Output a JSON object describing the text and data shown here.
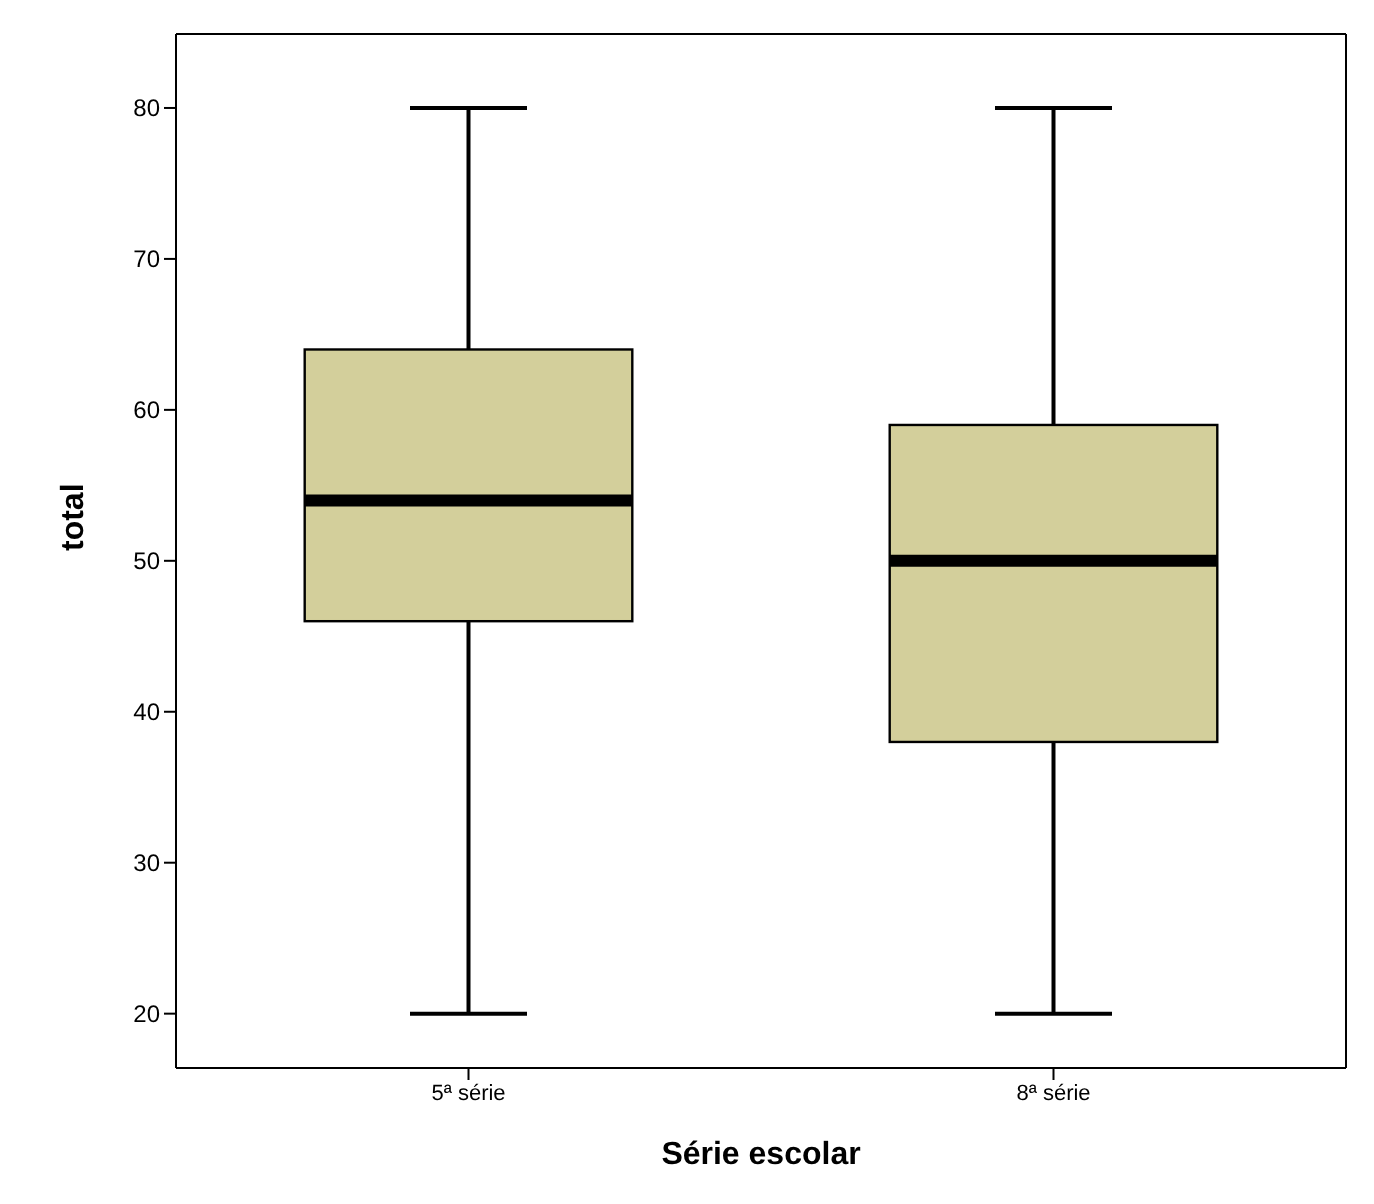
{
  "chart_data": {
    "type": "box",
    "xlabel": "Série escolar",
    "ylabel": "total",
    "categories": [
      "5ª série",
      "8ª série"
    ],
    "boxes": [
      {
        "low": 20,
        "q1": 46,
        "median": 54,
        "q3": 64,
        "high": 80
      },
      {
        "low": 20,
        "q1": 38,
        "median": 50,
        "q3": 59,
        "high": 80
      }
    ],
    "color": "#d3cf9b",
    "ylim": [
      16.4,
      84.9
    ],
    "yticks": [
      20,
      30,
      40,
      50,
      60,
      70,
      80
    ]
  }
}
